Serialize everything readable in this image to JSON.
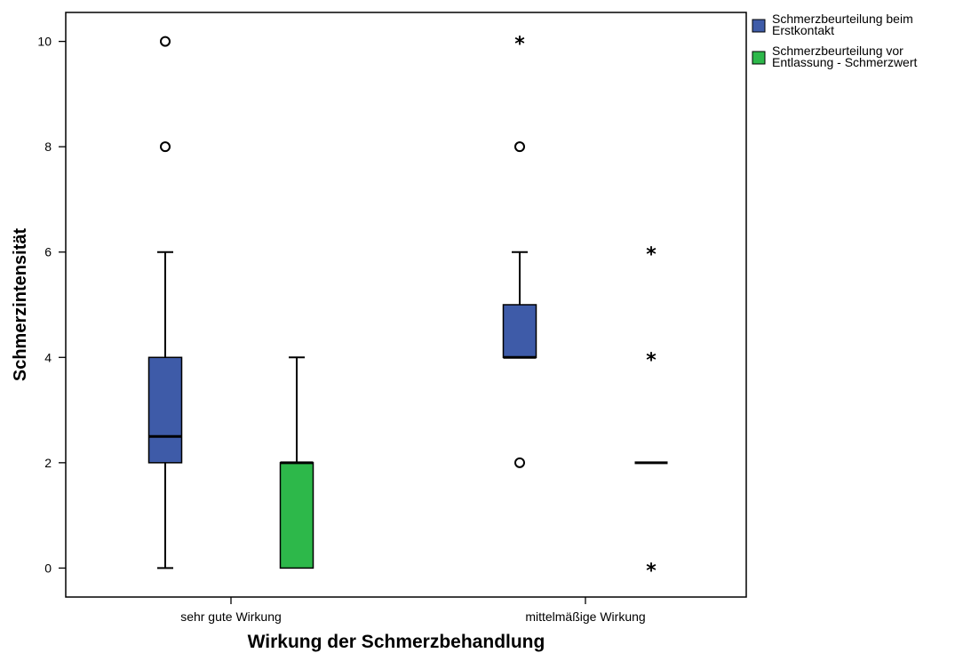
{
  "chart_data": {
    "type": "boxplot",
    "xlabel": "Wirkung der Schmerzbehandlung",
    "ylabel": "Schmerzintensität",
    "ylim": [
      -0.55,
      10.55
    ],
    "yticks": [
      0,
      2,
      4,
      6,
      8,
      10
    ],
    "grid": false,
    "legend_position": "top-right, outside plot",
    "categories": [
      "sehr gute Wirkung",
      "mittelmäßige Wirkung"
    ],
    "series": [
      {
        "name": "Schmerzbeurteilung beim Erstkontakt",
        "legend_lines": [
          "Schmerzbeurteilung beim",
          "Erstkontakt"
        ],
        "color": "#3e5ba8",
        "boxes": [
          {
            "whisker_low": 0,
            "q1": 2,
            "median": 2.5,
            "q3": 4,
            "whisker_high": 6,
            "outliers": [
              8,
              10
            ],
            "extremes": []
          },
          {
            "whisker_low": 4,
            "q1": 4,
            "median": 4,
            "q3": 5,
            "whisker_high": 6,
            "outliers": [
              2,
              8
            ],
            "extremes": [
              10
            ]
          }
        ]
      },
      {
        "name": "Schmerzbeurteilung vor Entlassung - Schmerzwert",
        "legend_lines": [
          "Schmerzbeurteilung vor",
          "Entlassung - Schmerzwert"
        ],
        "color": "#2db84a",
        "boxes": [
          {
            "whisker_low": 0,
            "q1": 0,
            "median": 2,
            "q3": 2,
            "whisker_high": 4,
            "outliers": [],
            "extremes": []
          },
          {
            "whisker_low": 2,
            "q1": 2,
            "median": 2,
            "q3": 2,
            "whisker_high": 2,
            "outliers": [],
            "extremes": [
              0,
              4,
              6
            ]
          }
        ]
      }
    ]
  }
}
